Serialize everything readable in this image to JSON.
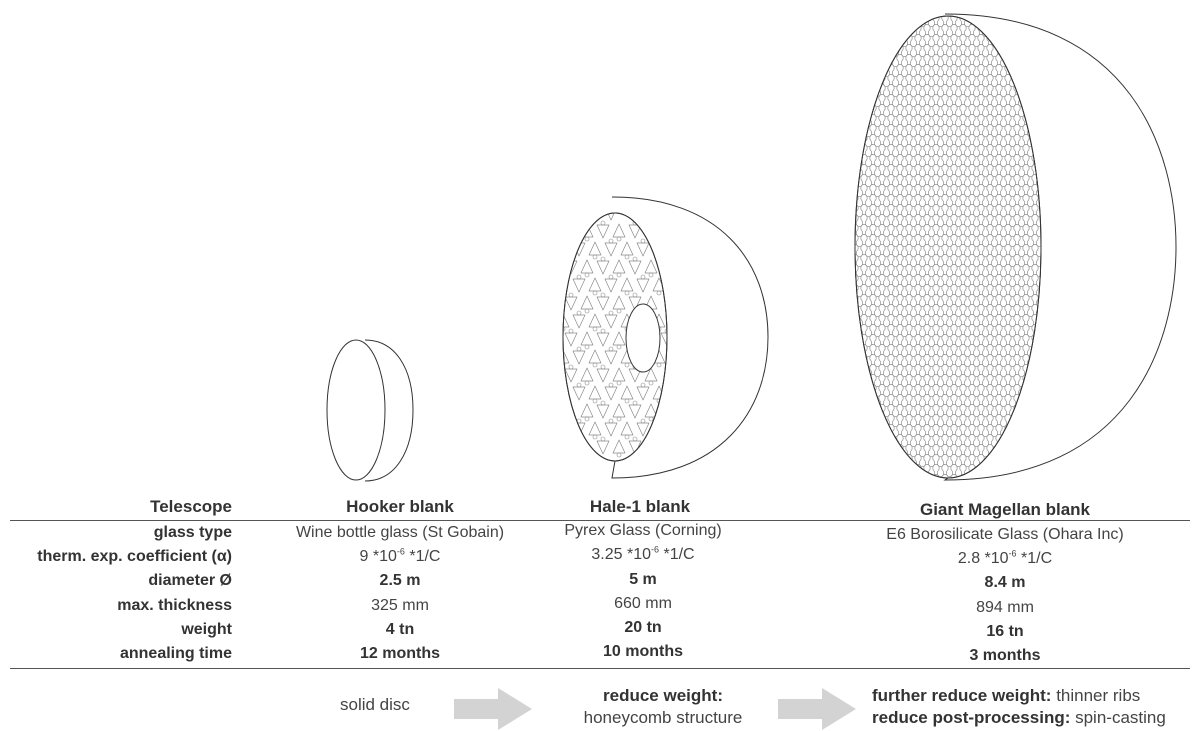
{
  "table": {
    "row_labels": {
      "telescope": "Telescope",
      "glass_type": "glass type",
      "therm_coeff": "therm. exp. coefficient (α)",
      "diameter": "diameter Ø",
      "thickness": "max. thickness",
      "weight": "weight",
      "annealing": "annealing time"
    },
    "columns": [
      {
        "name": "Hooker blank",
        "glass_type": "Wine bottle glass (St Gobain)",
        "coeff_base": "9 *10",
        "coeff_exp": "-6",
        "coeff_unit": " *1/C",
        "diameter": "2.5 m",
        "thickness": "325 mm",
        "weight": "4 tn",
        "annealing": "12 months"
      },
      {
        "name": "Hale-1 blank",
        "glass_type": "Pyrex Glass (Corning)",
        "coeff_base": "3.25 *10",
        "coeff_exp": "-6",
        "coeff_unit": " *1/C",
        "diameter": "5 m",
        "thickness": "660 mm",
        "weight": "20 tn",
        "annealing": "10 months"
      },
      {
        "name": "Giant Magellan blank",
        "glass_type": "E6 Borosilicate Glass (Ohara Inc)",
        "coeff_base": "2.8 *10",
        "coeff_exp": "-6",
        "coeff_unit": " *1/C",
        "diameter": "8.4 m",
        "thickness": "894 mm",
        "weight": "16 tn",
        "annealing": "3 months"
      }
    ]
  },
  "notes": {
    "hooker": "solid disc",
    "hale_bold": "reduce weight:",
    "hale_text": "honeycomb structure",
    "gm_line1_bold": "further reduce weight:",
    "gm_line1_text": " thinner ribs",
    "gm_line2_bold": "reduce post-processing:",
    "gm_line2_text": " spin-casting"
  },
  "colors": {
    "line": "#333333",
    "arrow": "#d3d3d3",
    "pattern": "#8a8a8a"
  }
}
